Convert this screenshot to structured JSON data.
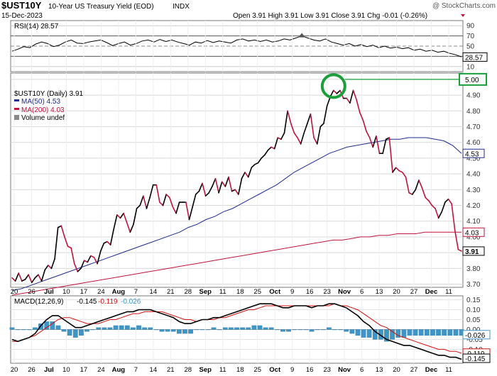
{
  "header": {
    "symbol": "$UST10Y",
    "description": "10-Year US Treasury Yield (EOD)",
    "exchange": "INDX",
    "date": "15-Dec-2023",
    "watermark": "@ StockCharts.com",
    "ohlc": "Open 3.91  High 3.91  Low 3.91  Close 3.91  Chg -0.01 (-0.26%)"
  },
  "colors": {
    "price": "#000000",
    "price_down": "#c0143c",
    "ma50": "#1f2a8c",
    "ma200": "#c0143c",
    "rsi": "#000000",
    "macd": "#000000",
    "signal": "#d41010",
    "hist": "#3d95c8",
    "annotation": "#1aa03a",
    "grid": "#d8d8d8"
  },
  "x_axis": {
    "tick_labels": [
      "20",
      "26",
      "Jul",
      "10",
      "17",
      "24",
      "Aug",
      "7",
      "14",
      "21",
      "28",
      "Sep",
      "11",
      "18",
      "25",
      "Oct",
      "9",
      "16",
      "23",
      "Nov",
      "6",
      "13",
      "20",
      "27",
      "Dec",
      "11"
    ]
  },
  "chart_data": [
    {
      "type": "line",
      "name": "RSI panel",
      "title": "RSI(14) 28.57",
      "series": [
        {
          "name": "RSI(14)",
          "last": 28.57,
          "values": [
            40,
            44,
            49,
            47,
            54,
            58,
            55,
            49,
            52,
            58,
            62,
            56,
            55,
            58,
            60,
            62,
            57,
            51,
            55,
            58,
            52,
            55,
            60,
            62,
            58,
            63,
            59,
            62,
            58,
            55,
            52,
            58,
            56,
            61,
            57,
            60,
            58,
            56,
            62,
            64,
            60,
            62,
            59,
            62,
            58,
            60,
            64,
            62,
            66,
            70,
            66,
            62,
            60,
            64,
            58,
            55,
            52,
            55,
            50,
            53,
            49,
            52,
            47,
            50,
            46,
            48,
            45,
            47,
            42,
            44,
            40,
            42,
            38,
            40,
            36,
            33,
            29
          ]
        }
      ],
      "yticks": [
        10,
        30,
        50,
        70,
        90
      ],
      "ylim": [
        0,
        100
      ],
      "last_label": "28.57"
    },
    {
      "type": "line",
      "name": "Price panel",
      "title": "$UST10Y (Daily) 3.91",
      "ylim": [
        3.68,
        5.04
      ],
      "yticks": [
        3.7,
        3.8,
        3.9,
        4.0,
        4.1,
        4.2,
        4.3,
        4.4,
        4.5,
        4.6,
        4.7,
        4.8,
        4.9,
        5.0
      ],
      "series": [
        {
          "name": "$UST10Y",
          "legend": "$UST10Y (Daily) 3.91",
          "values": [
            3.74,
            3.72,
            3.77,
            3.72,
            3.73,
            3.76,
            3.71,
            3.74,
            3.76,
            3.72,
            3.79,
            3.82,
            3.8,
            3.86,
            4.06,
            4.07,
            4.0,
            3.94,
            3.93,
            3.83,
            3.78,
            3.8,
            3.85,
            3.84,
            3.88,
            3.87,
            3.83,
            3.91,
            3.96,
            3.97,
            3.95,
            4.05,
            4.14,
            4.12,
            4.15,
            4.09,
            4.03,
            4.08,
            4.18,
            4.2,
            4.26,
            4.18,
            4.25,
            4.33,
            4.33,
            4.22,
            4.2,
            4.27,
            4.25,
            4.19,
            4.15,
            4.22,
            4.22,
            4.22,
            4.11,
            4.19,
            4.27,
            4.29,
            4.34,
            4.26,
            4.28,
            4.32,
            4.37,
            4.28,
            4.35,
            4.32,
            4.38,
            4.29,
            4.3,
            4.27,
            4.37,
            4.41,
            4.38,
            4.44,
            4.46,
            4.47,
            4.5,
            4.52,
            4.55,
            4.57,
            4.56,
            4.63,
            4.62,
            4.66,
            4.8,
            4.72,
            4.66,
            4.63,
            4.59,
            4.66,
            4.72,
            4.78,
            4.63,
            4.59,
            4.7,
            4.72,
            4.83,
            4.89,
            4.93,
            4.91,
            4.93,
            4.88,
            4.88,
            4.85,
            4.93,
            4.87,
            4.79,
            4.74,
            4.67,
            4.63,
            4.57,
            4.64,
            4.53,
            4.53,
            4.62,
            4.63,
            4.41,
            4.44,
            4.42,
            4.41,
            4.38,
            4.28,
            4.27,
            4.3,
            4.36,
            4.31,
            4.25,
            4.23,
            4.2,
            4.18,
            4.12,
            4.16,
            4.22,
            4.24,
            4.21,
            4.04,
            3.92,
            3.91
          ]
        },
        {
          "name": "MA(50)",
          "legend": "MA(50) 4.53",
          "last": 4.53,
          "values": [
            3.66,
            3.67,
            3.69,
            3.71,
            3.73,
            3.75,
            3.77,
            3.79,
            3.81,
            3.83,
            3.85,
            3.87,
            3.89,
            3.91,
            3.93,
            3.95,
            3.97,
            3.99,
            4.01,
            4.03,
            4.06,
            4.08,
            4.11,
            4.13,
            4.16,
            4.18,
            4.21,
            4.24,
            4.27,
            4.3,
            4.33,
            4.37,
            4.41,
            4.44,
            4.47,
            4.5,
            4.53,
            4.55,
            4.57,
            4.58,
            4.59,
            4.6,
            4.61,
            4.62,
            4.62,
            4.63,
            4.63,
            4.63,
            4.62,
            4.61,
            4.58,
            4.53
          ]
        },
        {
          "name": "MA(200)",
          "legend": "MA(200) 4.03",
          "last": 4.03,
          "values": [
            3.63,
            3.64,
            3.65,
            3.66,
            3.67,
            3.68,
            3.69,
            3.7,
            3.71,
            3.72,
            3.73,
            3.74,
            3.75,
            3.76,
            3.77,
            3.78,
            3.79,
            3.8,
            3.81,
            3.82,
            3.83,
            3.84,
            3.85,
            3.86,
            3.87,
            3.88,
            3.89,
            3.9,
            3.91,
            3.92,
            3.93,
            3.94,
            3.95,
            3.96,
            3.97,
            3.98,
            3.98,
            3.99,
            4.0,
            4.0,
            4.01,
            4.01,
            4.02,
            4.02,
            4.02,
            4.03,
            4.03,
            4.03,
            4.03,
            4.03
          ]
        }
      ],
      "legend_extra": "Volume undef",
      "price_label": "3.91",
      "ma50_label": "4.53",
      "ma200_label": "4.03",
      "annotation_label": "5.00",
      "annotation_level": 5.0,
      "annotation_peak_index": 98
    },
    {
      "type": "line",
      "name": "MACD panel",
      "title": "MACD(12,26,9)",
      "values_text": {
        "macd": "-0.145",
        "signal": "-0.119",
        "hist": "-0.026"
      },
      "ylim": [
        -0.17,
        0.17
      ],
      "yticks": [
        -0.15,
        -0.1,
        -0.05,
        0.0,
        0.05,
        0.1,
        0.15
      ],
      "ytick_labels": [
        "",
        "-0.10",
        "-0.05",
        "0.00",
        "0.05",
        "0.10",
        "0.15"
      ],
      "series": [
        {
          "name": "MACD",
          "values": [
            -0.05,
            -0.06,
            -0.05,
            -0.04,
            -0.02,
            0.02,
            0.05,
            0.07,
            0.07,
            0.05,
            0.03,
            0.01,
            0.01,
            0.02,
            0.03,
            0.04,
            0.05,
            0.06,
            0.07,
            0.08,
            0.09,
            0.09,
            0.1,
            0.1,
            0.1,
            0.09,
            0.08,
            0.07,
            0.06,
            0.04,
            0.03,
            0.03,
            0.04,
            0.05,
            0.05,
            0.06,
            0.06,
            0.07,
            0.08,
            0.09,
            0.1,
            0.11,
            0.12,
            0.13,
            0.13,
            0.13,
            0.12,
            0.11,
            0.11,
            0.12,
            0.12,
            0.12,
            0.11,
            0.12,
            0.12,
            0.13,
            0.13,
            0.12,
            0.11,
            0.09,
            0.07,
            0.04,
            0.02,
            -0.01,
            -0.03,
            -0.05,
            -0.06,
            -0.07,
            -0.08,
            -0.08,
            -0.09,
            -0.1,
            -0.11,
            -0.12,
            -0.13,
            -0.13,
            -0.14,
            -0.14,
            -0.15
          ]
        },
        {
          "name": "Signal",
          "values": [
            -0.06,
            -0.06,
            -0.05,
            -0.04,
            -0.03,
            -0.01,
            0.01,
            0.03,
            0.05,
            0.06,
            0.06,
            0.05,
            0.04,
            0.03,
            0.03,
            0.03,
            0.04,
            0.05,
            0.05,
            0.06,
            0.07,
            0.08,
            0.08,
            0.09,
            0.09,
            0.09,
            0.09,
            0.08,
            0.07,
            0.06,
            0.05,
            0.05,
            0.04,
            0.05,
            0.05,
            0.05,
            0.06,
            0.06,
            0.07,
            0.08,
            0.09,
            0.1,
            0.1,
            0.11,
            0.12,
            0.12,
            0.12,
            0.12,
            0.12,
            0.12,
            0.12,
            0.12,
            0.12,
            0.12,
            0.12,
            0.12,
            0.13,
            0.12,
            0.12,
            0.11,
            0.1,
            0.08,
            0.06,
            0.04,
            0.02,
            0.01,
            -0.01,
            -0.03,
            -0.04,
            -0.05,
            -0.06,
            -0.07,
            -0.08,
            -0.09,
            -0.1,
            -0.1,
            -0.11,
            -0.11,
            -0.12
          ]
        },
        {
          "name": "Histogram",
          "values": [
            0.01,
            0.0,
            0.0,
            0.0,
            0.01,
            0.03,
            0.04,
            0.04,
            0.02,
            -0.01,
            -0.03,
            -0.04,
            -0.03,
            -0.01,
            0.0,
            0.01,
            0.01,
            0.01,
            0.02,
            0.02,
            0.02,
            0.01,
            0.02,
            0.01,
            0.01,
            0.0,
            -0.01,
            -0.01,
            -0.01,
            -0.02,
            -0.02,
            -0.02,
            0.0,
            0.0,
            0.0,
            0.01,
            0.0,
            0.01,
            0.01,
            0.01,
            0.01,
            0.01,
            0.02,
            0.02,
            0.01,
            0.01,
            0.0,
            -0.01,
            -0.01,
            0.0,
            0.0,
            0.0,
            -0.01,
            0.0,
            0.0,
            0.01,
            0.0,
            0.0,
            -0.01,
            -0.02,
            -0.03,
            -0.04,
            -0.04,
            -0.05,
            -0.05,
            -0.06,
            -0.05,
            -0.04,
            -0.04,
            -0.03,
            -0.03,
            -0.03,
            -0.03,
            -0.03,
            -0.03,
            -0.03,
            -0.03,
            -0.03,
            -0.03
          ]
        }
      ],
      "macd_label": "-0.145",
      "signal_label": "-0.119",
      "hist_label": "-0.026"
    }
  ]
}
